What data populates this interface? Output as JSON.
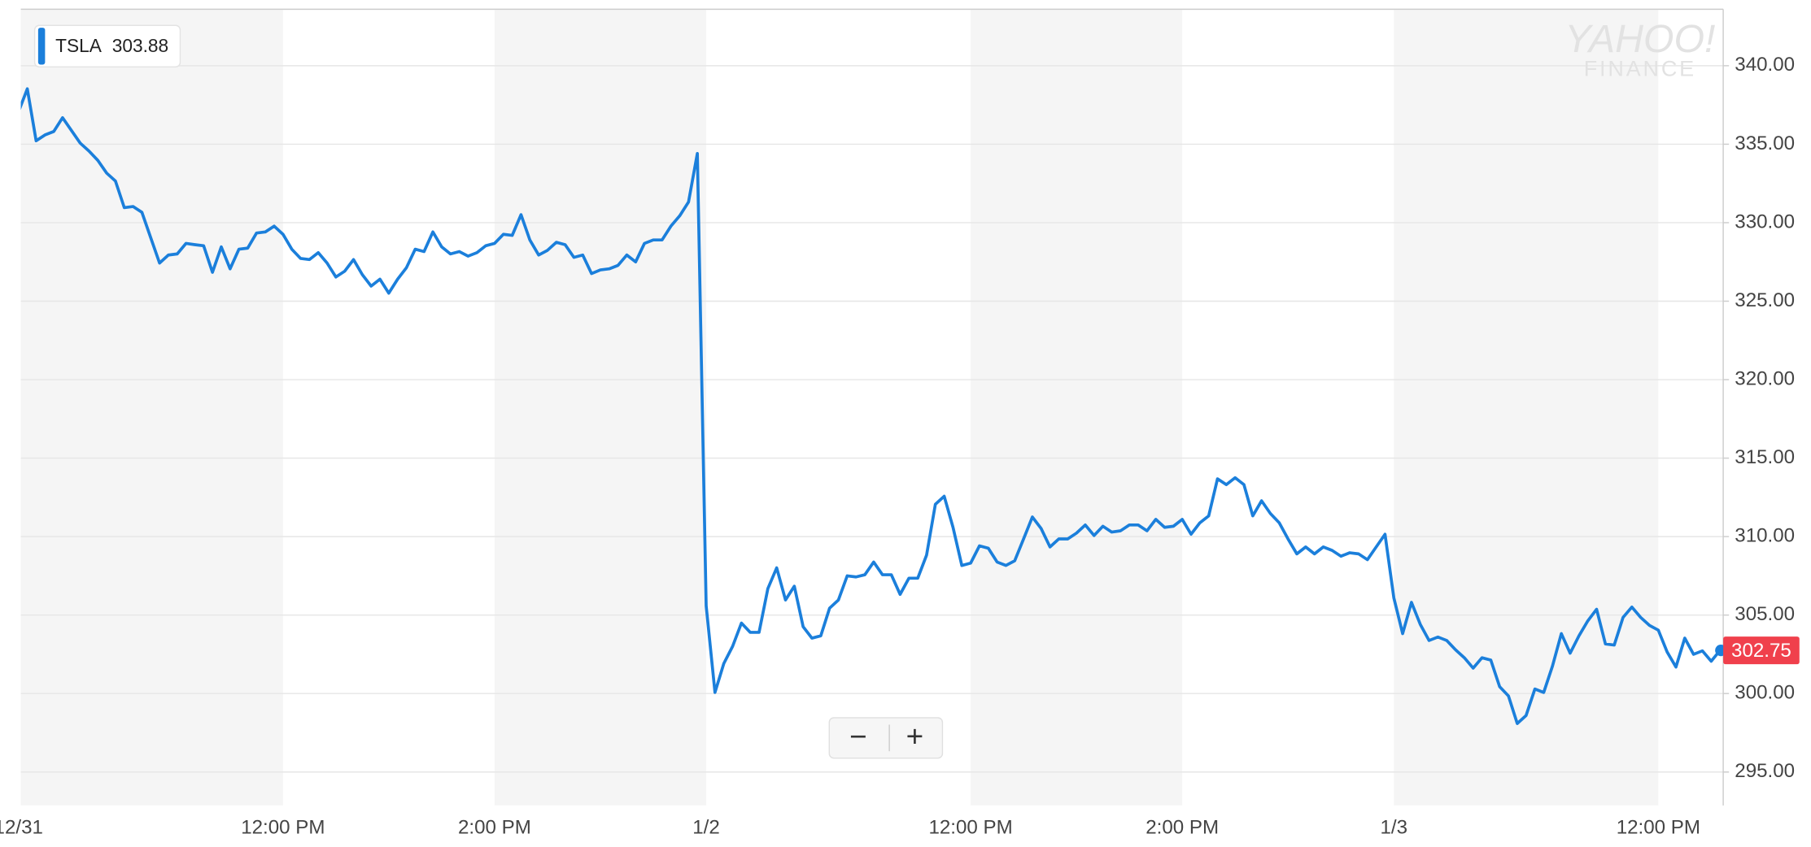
{
  "chart_data": {
    "type": "line",
    "x": [
      0,
      5,
      10,
      15,
      20,
      25,
      30,
      35,
      40,
      45,
      50,
      55,
      60,
      65,
      70,
      75,
      80,
      85,
      90,
      95,
      100,
      105,
      110,
      115,
      120,
      125,
      130,
      135,
      140,
      145,
      150,
      155,
      160,
      165,
      170,
      175,
      180,
      185,
      190,
      195,
      200,
      205,
      210,
      215,
      220,
      225,
      230,
      235,
      240,
      245,
      250,
      255,
      260,
      265,
      270,
      275,
      280,
      285,
      290,
      295,
      300,
      305,
      310,
      315,
      320,
      325,
      330,
      335,
      340,
      345,
      350,
      355,
      360,
      365,
      370,
      375,
      380,
      385,
      390,
      395,
      400,
      405,
      410,
      415,
      420,
      425,
      430,
      435,
      440,
      445,
      450,
      455,
      460,
      465,
      470,
      475,
      480,
      485,
      490,
      495,
      500,
      505,
      510,
      515,
      520,
      525,
      530,
      535,
      540,
      545,
      550,
      555,
      560,
      565,
      570,
      575,
      580,
      585,
      590,
      595,
      600,
      605,
      610,
      615,
      620,
      625,
      630,
      635,
      640,
      645,
      650,
      655,
      660,
      665,
      670,
      675,
      680,
      685,
      690,
      695,
      700,
      705,
      710,
      715,
      720,
      725,
      730,
      735,
      740,
      745,
      750,
      755,
      760,
      765,
      770,
      775,
      780,
      785,
      790,
      795,
      800,
      805,
      810,
      815,
      820,
      825,
      830,
      835,
      840,
      845,
      850,
      855,
      860,
      865,
      870,
      875,
      880,
      885,
      890,
      895,
      900,
      905,
      910,
      915,
      920,
      925,
      930,
      935,
      940,
      945,
      950,
      955,
      960,
      965
    ],
    "series": [
      {
        "name": "TSLA",
        "color": "#1b7fdb",
        "values": [
          337.06,
          338.53,
          335.22,
          335.59,
          335.81,
          336.69,
          335.88,
          335.07,
          334.56,
          333.97,
          333.16,
          332.65,
          330.96,
          331.03,
          330.66,
          329.04,
          327.43,
          327.94,
          328.01,
          328.68,
          328.6,
          328.53,
          326.84,
          328.46,
          327.06,
          328.31,
          328.38,
          329.34,
          329.41,
          329.78,
          329.26,
          328.31,
          327.72,
          327.65,
          328.09,
          327.43,
          326.54,
          326.91,
          327.65,
          326.69,
          325.96,
          326.4,
          325.51,
          326.4,
          327.13,
          328.31,
          328.16,
          329.41,
          328.46,
          328.01,
          328.16,
          327.87,
          328.09,
          328.53,
          328.68,
          329.26,
          329.19,
          330.51,
          328.9,
          327.94,
          328.24,
          328.75,
          328.6,
          327.79,
          327.94,
          326.76,
          326.99,
          327.06,
          327.28,
          327.94,
          327.5,
          328.68,
          328.9,
          328.9,
          329.78,
          330.44,
          331.32,
          334.41,
          305.59,
          300.07,
          301.91,
          303.01,
          304.49,
          303.9,
          303.9,
          306.69,
          308.01,
          305.96,
          306.84,
          304.26,
          303.53,
          303.68,
          305.44,
          305.96,
          307.5,
          307.43,
          307.57,
          308.38,
          307.57,
          307.57,
          306.32,
          307.35,
          307.35,
          308.82,
          312.06,
          312.57,
          310.59,
          308.16,
          308.31,
          309.41,
          309.26,
          308.38,
          308.16,
          308.46,
          309.85,
          311.25,
          310.51,
          309.34,
          309.85,
          309.85,
          310.22,
          310.74,
          310.07,
          310.66,
          310.29,
          310.37,
          310.74,
          310.74,
          310.37,
          311.1,
          310.59,
          310.66,
          311.1,
          310.15,
          310.88,
          311.32,
          313.68,
          313.31,
          313.75,
          313.31,
          311.32,
          312.28,
          311.47,
          310.88,
          309.85,
          308.9,
          309.34,
          308.9,
          309.34,
          309.12,
          308.75,
          308.97,
          308.9,
          308.53,
          309.34,
          310.15,
          306.1,
          303.82,
          305.81,
          304.41,
          303.38,
          303.6,
          303.38,
          302.79,
          302.28,
          301.62,
          302.28,
          302.13,
          300.44,
          299.85,
          298.09,
          298.6,
          300.29,
          300.07,
          301.76,
          303.82,
          302.57,
          303.68,
          304.63,
          305.37,
          303.16,
          303.09,
          304.85,
          305.51,
          304.85,
          304.34,
          304.04,
          302.65,
          301.69,
          303.53,
          302.5,
          302.72,
          302.06,
          302.75
        ]
      }
    ],
    "quote": 303.88,
    "last_color": "#f0404c",
    "xlim": [
      0,
      967
    ],
    "ylim": [
      292.87,
      343.6
    ],
    "xticks": [
      {
        "value": 0,
        "label": "12/31"
      },
      {
        "value": 150,
        "label": "12:00 PM"
      },
      {
        "value": 270,
        "label": "2:00 PM"
      },
      {
        "value": 390,
        "label": "1/2"
      },
      {
        "value": 540,
        "label": "12:00 PM"
      },
      {
        "value": 660,
        "label": "2:00 PM"
      },
      {
        "value": 780,
        "label": "1/3"
      },
      {
        "value": 930,
        "label": "12:00 PM"
      }
    ],
    "yticks": [
      {
        "value": 295,
        "label": "295.00"
      },
      {
        "value": 300,
        "label": "300.00"
      },
      {
        "value": 305,
        "label": "305.00"
      },
      {
        "value": 310,
        "label": "310.00"
      },
      {
        "value": 315,
        "label": "315.00"
      },
      {
        "value": 320,
        "label": "320.00"
      },
      {
        "value": 325,
        "label": "325.00"
      },
      {
        "value": 330,
        "label": "330.00"
      },
      {
        "value": 335,
        "label": "335.00"
      },
      {
        "value": 340,
        "label": "340.00"
      }
    ],
    "grid": true,
    "watermark": [
      "YAHOO!",
      "FINANCE"
    ],
    "zoom_buttons": [
      "−",
      "+"
    ]
  }
}
